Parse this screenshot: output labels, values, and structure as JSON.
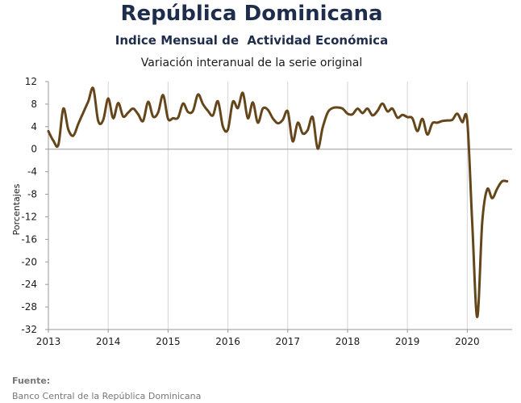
{
  "chart_data": {
    "type": "line",
    "title": "República Dominicana",
    "subtitle": "Indice Mensual de  Actividad Económica",
    "subsubtitle": "Variación interanual de la serie original",
    "xlabel": "",
    "ylabel": "Porcentajes",
    "ylim": [
      -32,
      12
    ],
    "yticks": [
      12,
      8,
      4,
      0,
      -4,
      -8,
      -12,
      -16,
      -20,
      -24,
      -28,
      -32
    ],
    "xlim": [
      2013,
      2020.75
    ],
    "xticks": [
      2013,
      2014,
      2015,
      2016,
      2017,
      2018,
      2019,
      2020
    ],
    "grid": "vertical",
    "legend": "none",
    "line_color": "#65461a",
    "series": [
      {
        "name": "",
        "x": [
          2013.0,
          2013.083,
          2013.167,
          2013.25,
          2013.333,
          2013.417,
          2013.5,
          2013.583,
          2013.667,
          2013.75,
          2013.833,
          2013.917,
          2014.0,
          2014.083,
          2014.167,
          2014.25,
          2014.333,
          2014.417,
          2014.5,
          2014.583,
          2014.667,
          2014.75,
          2014.833,
          2014.917,
          2015.0,
          2015.083,
          2015.167,
          2015.25,
          2015.333,
          2015.417,
          2015.5,
          2015.583,
          2015.667,
          2015.75,
          2015.833,
          2015.917,
          2016.0,
          2016.083,
          2016.167,
          2016.25,
          2016.333,
          2016.417,
          2016.5,
          2016.583,
          2016.667,
          2016.75,
          2016.833,
          2016.917,
          2017.0,
          2017.083,
          2017.167,
          2017.25,
          2017.333,
          2017.417,
          2017.5,
          2017.583,
          2017.667,
          2017.75,
          2017.833,
          2017.917,
          2018.0,
          2018.083,
          2018.167,
          2018.25,
          2018.333,
          2018.417,
          2018.5,
          2018.583,
          2018.667,
          2018.75,
          2018.833,
          2018.917,
          2019.0,
          2019.083,
          2019.167,
          2019.25,
          2019.333,
          2019.417,
          2019.5,
          2019.583,
          2019.667,
          2019.75,
          2019.833,
          2019.917,
          2020.0,
          2020.083,
          2020.167,
          2020.25,
          2020.333,
          2020.417,
          2020.5,
          2020.583,
          2020.667
        ],
        "y": [
          3.2,
          1.5,
          0.8,
          7.2,
          3.5,
          2.4,
          4.5,
          6.5,
          8.5,
          10.8,
          5.0,
          5.2,
          9.0,
          5.5,
          8.2,
          5.8,
          6.5,
          7.2,
          6.2,
          5.0,
          8.4,
          5.8,
          6.5,
          9.6,
          5.4,
          5.5,
          5.6,
          8.1,
          6.6,
          6.8,
          9.7,
          8.0,
          6.8,
          6.0,
          8.5,
          4.0,
          3.5,
          8.4,
          7.3,
          10.0,
          5.5,
          8.3,
          4.7,
          7.2,
          7.0,
          5.5,
          4.6,
          5.2,
          6.7,
          1.4,
          4.7,
          2.8,
          3.4,
          5.7,
          0.1,
          3.8,
          6.5,
          7.3,
          7.4,
          7.2,
          6.3,
          6.2,
          7.2,
          6.4,
          7.2,
          6.0,
          6.8,
          8.1,
          6.7,
          7.2,
          5.6,
          6.1,
          5.7,
          5.5,
          3.2,
          5.4,
          2.6,
          4.6,
          4.7,
          5.0,
          5.1,
          5.2,
          6.3,
          4.8,
          5.0,
          -13.0,
          -29.8,
          -13.0,
          -7.1,
          -8.7,
          -7.0,
          -5.7,
          -5.7
        ]
      }
    ],
    "source_label": "Fuente:",
    "source_text": "Banco Central de la República Dominicana"
  }
}
